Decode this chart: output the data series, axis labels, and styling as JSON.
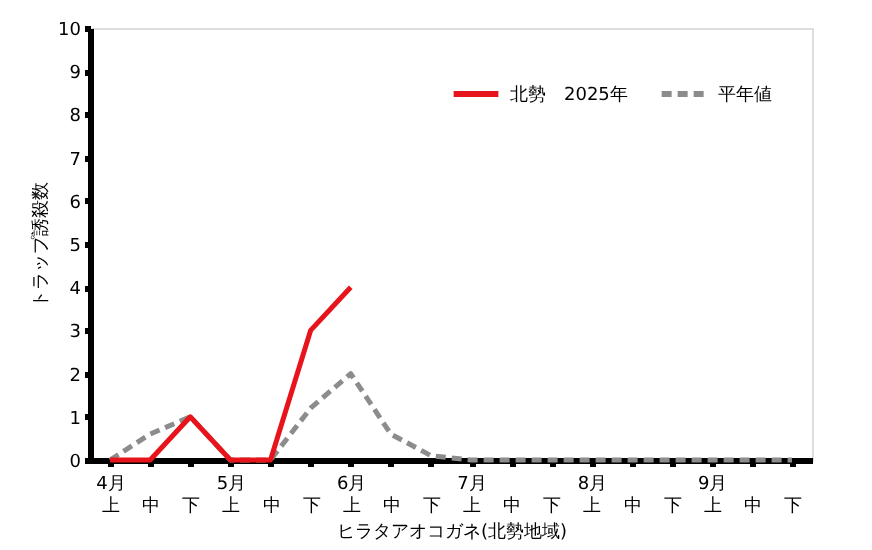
{
  "chart_data": {
    "type": "line",
    "xlabel": "ヒラタアオコガネ(北勢地域)",
    "ylabel": "トラップ誘殺数",
    "categories": [
      "4月上",
      "中",
      "下",
      "5月上",
      "中",
      "下",
      "6月上",
      "中",
      "下",
      "7月上",
      "中",
      "下",
      "8月上",
      "中",
      "下",
      "9月上",
      "中",
      "下"
    ],
    "series": [
      {
        "name": "北勢　2025年",
        "color": "#e8141c",
        "line_style": "solid",
        "values": [
          0,
          0,
          1,
          0,
          0,
          3,
          4,
          null,
          null,
          null,
          null,
          null,
          null,
          null,
          null,
          null,
          null,
          null
        ]
      },
      {
        "name": "平年値",
        "color": "#8c8c8c",
        "line_style": "dashed",
        "values": [
          0,
          0.6,
          1.0,
          0,
          0,
          1.2,
          2.0,
          0.6,
          0.1,
          0,
          0,
          0,
          0,
          0,
          0,
          0,
          0,
          0
        ]
      }
    ],
    "ylim": [
      0,
      10
    ],
    "yticks": [
      0,
      1,
      2,
      3,
      4,
      5,
      6,
      7,
      8,
      9,
      10
    ],
    "grid": false,
    "legend": "top right",
    "marker": "none"
  }
}
